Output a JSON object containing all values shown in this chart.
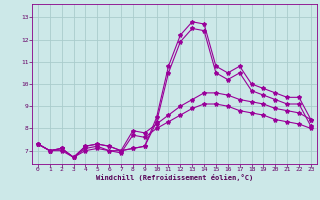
{
  "title": "",
  "xlabel": "Windchill (Refroidissement éolien,°C)",
  "ylabel": "",
  "xlim": [
    -0.5,
    23.5
  ],
  "ylim": [
    6.4,
    13.6
  ],
  "xticks": [
    0,
    1,
    2,
    3,
    4,
    5,
    6,
    7,
    8,
    9,
    10,
    11,
    12,
    13,
    14,
    15,
    16,
    17,
    18,
    19,
    20,
    21,
    22,
    23
  ],
  "yticks": [
    7,
    8,
    9,
    10,
    11,
    12,
    13
  ],
  "background_color": "#cce8e8",
  "grid_color": "#aacccc",
  "line_color": "#990099",
  "lines": [
    {
      "x": [
        0,
        1,
        2,
        3,
        4,
        5,
        6,
        7,
        8,
        9,
        10,
        11,
        12,
        13,
        14,
        15,
        16,
        17,
        18,
        19,
        20,
        21,
        22,
        23
      ],
      "y": [
        7.3,
        7.0,
        7.1,
        6.7,
        7.2,
        7.3,
        7.2,
        7.0,
        7.1,
        7.2,
        8.5,
        10.8,
        12.2,
        12.8,
        12.7,
        10.8,
        10.5,
        10.8,
        10.0,
        9.8,
        9.6,
        9.4,
        9.4,
        8.4
      ]
    },
    {
      "x": [
        0,
        1,
        2,
        3,
        4,
        5,
        6,
        7,
        8,
        9,
        10,
        11,
        12,
        13,
        14,
        15,
        16,
        17,
        18,
        19,
        20,
        21,
        22,
        23
      ],
      "y": [
        7.3,
        7.0,
        7.1,
        6.7,
        7.2,
        7.3,
        7.2,
        7.0,
        7.1,
        7.2,
        8.3,
        10.5,
        11.9,
        12.5,
        12.4,
        10.5,
        10.2,
        10.5,
        9.7,
        9.5,
        9.3,
        9.1,
        9.1,
        8.1
      ]
    },
    {
      "x": [
        0,
        1,
        2,
        3,
        4,
        5,
        6,
        7,
        8,
        9,
        10,
        11,
        12,
        13,
        14,
        15,
        16,
        17,
        18,
        19,
        20,
        21,
        22,
        23
      ],
      "y": [
        7.3,
        7.0,
        7.1,
        6.7,
        7.1,
        7.2,
        7.0,
        7.0,
        7.9,
        7.8,
        8.2,
        8.6,
        9.0,
        9.3,
        9.6,
        9.6,
        9.5,
        9.3,
        9.2,
        9.1,
        8.9,
        8.8,
        8.7,
        8.4
      ]
    },
    {
      "x": [
        0,
        1,
        2,
        3,
        4,
        5,
        6,
        7,
        8,
        9,
        10,
        11,
        12,
        13,
        14,
        15,
        16,
        17,
        18,
        19,
        20,
        21,
        22,
        23
      ],
      "y": [
        7.3,
        7.0,
        7.0,
        6.7,
        7.0,
        7.1,
        7.0,
        6.9,
        7.7,
        7.6,
        8.0,
        8.3,
        8.6,
        8.9,
        9.1,
        9.1,
        9.0,
        8.8,
        8.7,
        8.6,
        8.4,
        8.3,
        8.2,
        8.0
      ]
    }
  ]
}
